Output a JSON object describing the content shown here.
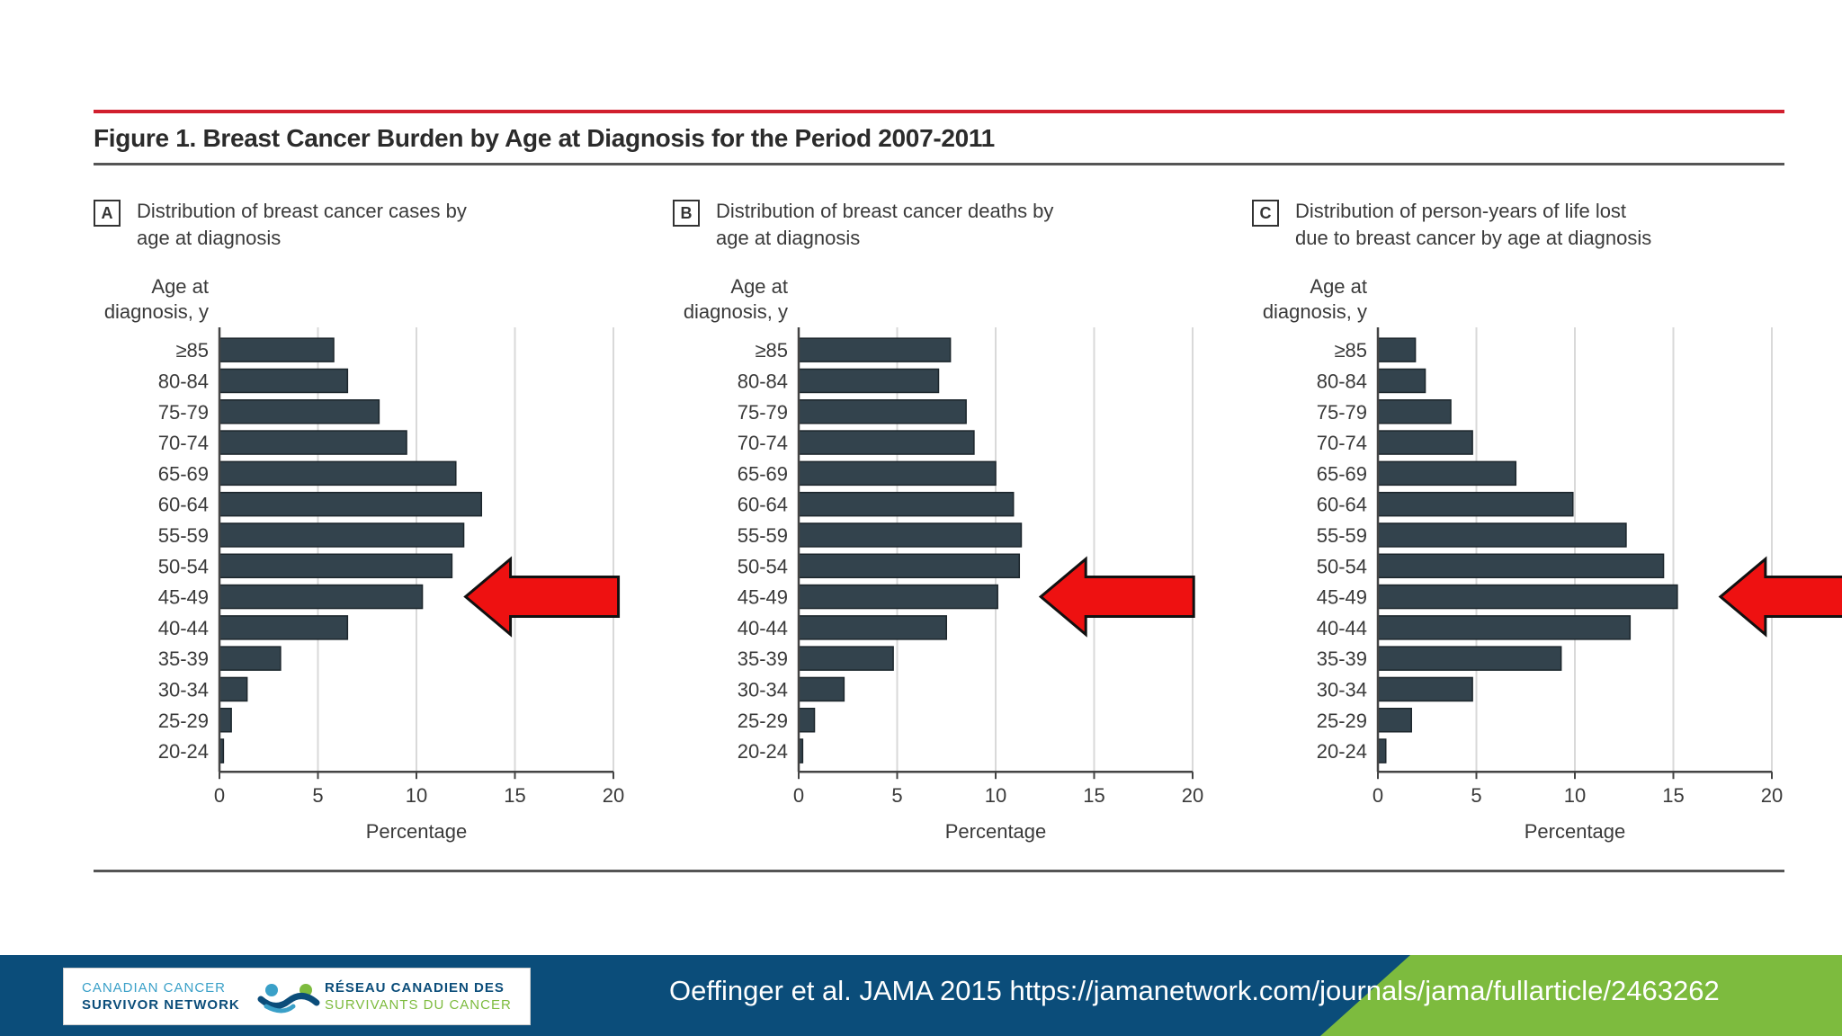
{
  "figure": {
    "title": "Figure 1. Breast Cancer Burden by Age at Diagnosis for the Period 2007-2011"
  },
  "axis": {
    "y_title_line1": "Age at",
    "y_title_line2": "diagnosis, y",
    "x_title": "Percentage"
  },
  "chart_data": [
    {
      "type": "bar",
      "orientation": "horizontal",
      "panel_letter": "A",
      "title": "Distribution of breast cancer cases by age at diagnosis",
      "title_line1": "Distribution of breast cancer cases by",
      "title_line2": "age at diagnosis",
      "xlabel": "Percentage",
      "ylabel": "Age at diagnosis, y",
      "xlim": [
        0,
        20
      ],
      "xticks": [
        0,
        5,
        10,
        15,
        20
      ],
      "categories": [
        "≥85",
        "80-84",
        "75-79",
        "70-74",
        "65-69",
        "60-64",
        "55-59",
        "50-54",
        "45-49",
        "40-44",
        "35-39",
        "30-34",
        "25-29",
        "20-24"
      ],
      "values": [
        5.8,
        6.5,
        8.1,
        9.5,
        12.0,
        13.3,
        12.4,
        11.8,
        10.3,
        6.5,
        3.1,
        1.4,
        0.6,
        0.2
      ],
      "grid": true,
      "annotation": "red arrow pointing to 45-49 bar",
      "bar_color": "#33434d"
    },
    {
      "type": "bar",
      "orientation": "horizontal",
      "panel_letter": "B",
      "title": "Distribution of breast cancer deaths by age at diagnosis",
      "title_line1": "Distribution of breast cancer deaths by",
      "title_line2": "age at diagnosis",
      "xlabel": "Percentage",
      "ylabel": "Age at diagnosis, y",
      "xlim": [
        0,
        20
      ],
      "xticks": [
        0,
        5,
        10,
        15,
        20
      ],
      "categories": [
        "≥85",
        "80-84",
        "75-79",
        "70-74",
        "65-69",
        "60-64",
        "55-59",
        "50-54",
        "45-49",
        "40-44",
        "35-39",
        "30-34",
        "25-29",
        "20-24"
      ],
      "values": [
        7.7,
        7.1,
        8.5,
        8.9,
        10.0,
        10.9,
        11.3,
        11.2,
        10.1,
        7.5,
        4.8,
        2.3,
        0.8,
        0.2
      ],
      "grid": true,
      "annotation": "red arrow pointing to 45-49 bar",
      "bar_color": "#33434d"
    },
    {
      "type": "bar",
      "orientation": "horizontal",
      "panel_letter": "C",
      "title": "Distribution of person-years of life lost due to breast cancer by age at diagnosis",
      "title_line1": "Distribution of person-years of life lost",
      "title_line2": "due to breast cancer by age at diagnosis",
      "xlabel": "Percentage",
      "ylabel": "Age at diagnosis, y",
      "xlim": [
        0,
        20
      ],
      "xticks": [
        0,
        5,
        10,
        15,
        20
      ],
      "categories": [
        "≥85",
        "80-84",
        "75-79",
        "70-74",
        "65-69",
        "60-64",
        "55-59",
        "50-54",
        "45-49",
        "40-44",
        "35-39",
        "30-34",
        "25-29",
        "20-24"
      ],
      "values": [
        1.9,
        2.4,
        3.7,
        4.8,
        7.0,
        9.9,
        12.6,
        14.5,
        15.2,
        12.8,
        9.3,
        4.8,
        1.7,
        0.4
      ],
      "grid": true,
      "annotation": "red arrow pointing to 45-49 bar",
      "bar_color": "#33434d"
    }
  ],
  "colors": {
    "bar": "#33434d",
    "arrow": "#ee1111",
    "top_rule": "#d11f2e",
    "footer_blue": "#0b4d7a",
    "footer_green": "#7dbb3e"
  },
  "footer": {
    "logo_en_line1": "CANADIAN CANCER",
    "logo_en_line2": "SURVIVOR NETWORK",
    "logo_fr_line1": "RÉSEAU CANADIEN DES",
    "logo_fr_line2": "SURVIVANTS DU CANCER",
    "citation": "Oeffinger et al. JAMA 2015 https://jamanetwork.com/journals/jama/fullarticle/2463262"
  }
}
